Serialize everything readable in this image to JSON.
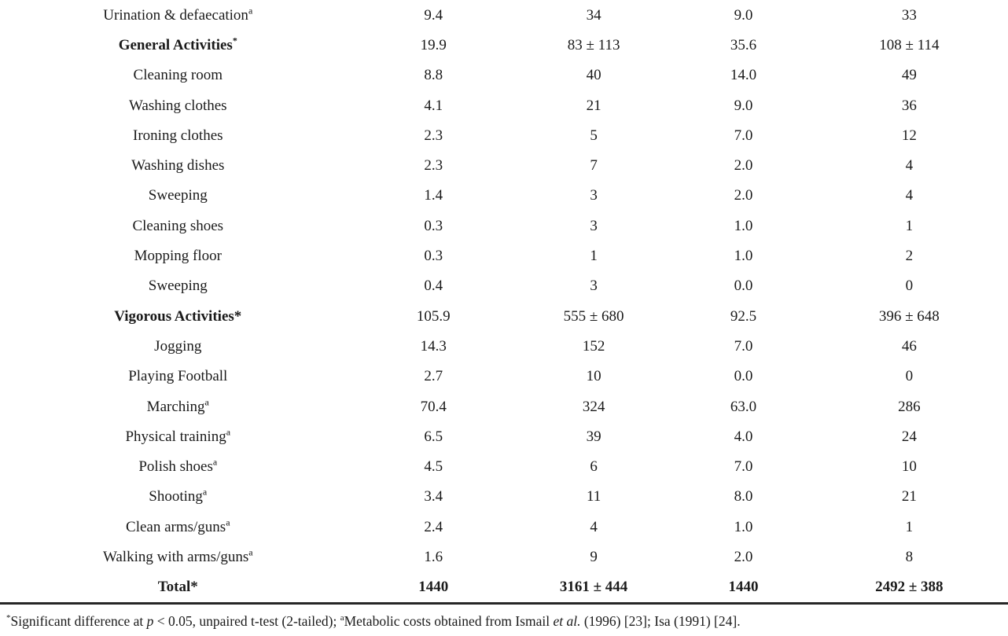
{
  "table": {
    "rows": [
      {
        "type": "item",
        "activity": "Urination & defaecation",
        "sup": "a",
        "values": [
          "9.4",
          "34",
          "9.0",
          "33"
        ]
      },
      {
        "type": "section",
        "activity": "General Activities",
        "sup": "*",
        "values": [
          "19.9",
          "83 ± 113",
          "35.6",
          "108 ± 114"
        ]
      },
      {
        "type": "item",
        "activity": "Cleaning room",
        "sup": "",
        "values": [
          "8.8",
          "40",
          "14.0",
          "49"
        ]
      },
      {
        "type": "item",
        "activity": "Washing clothes",
        "sup": "",
        "values": [
          "4.1",
          "21",
          "9.0",
          "36"
        ]
      },
      {
        "type": "item",
        "activity": "Ironing clothes",
        "sup": "",
        "values": [
          "2.3",
          "5",
          "7.0",
          "12"
        ]
      },
      {
        "type": "item",
        "activity": "Washing dishes",
        "sup": "",
        "values": [
          "2.3",
          "7",
          "2.0",
          "4"
        ]
      },
      {
        "type": "item",
        "activity": "Sweeping",
        "sup": "",
        "values": [
          "1.4",
          "3",
          "2.0",
          "4"
        ]
      },
      {
        "type": "item",
        "activity": "Cleaning shoes",
        "sup": "",
        "values": [
          "0.3",
          "3",
          "1.0",
          "1"
        ]
      },
      {
        "type": "item",
        "activity": "Mopping floor",
        "sup": "",
        "values": [
          "0.3",
          "1",
          "1.0",
          "2"
        ]
      },
      {
        "type": "item",
        "activity": "Sweeping",
        "sup": "",
        "values": [
          "0.4",
          "3",
          "0.0",
          "0"
        ]
      },
      {
        "type": "section",
        "activity": "Vigorous Activities*",
        "sup": "",
        "values": [
          "105.9",
          "555 ± 680",
          "92.5",
          "396 ± 648"
        ]
      },
      {
        "type": "item",
        "activity": "Jogging",
        "sup": "",
        "values": [
          "14.3",
          "152",
          "7.0",
          "46"
        ]
      },
      {
        "type": "item",
        "activity": "Playing Football",
        "sup": "",
        "values": [
          "2.7",
          "10",
          "0.0",
          "0"
        ]
      },
      {
        "type": "item",
        "activity": "Marching",
        "sup": "a",
        "values": [
          "70.4",
          "324",
          "63.0",
          "286"
        ]
      },
      {
        "type": "item",
        "activity": "Physical training",
        "sup": "a",
        "values": [
          "6.5",
          "39",
          "4.0",
          "24"
        ]
      },
      {
        "type": "item",
        "activity": "Polish shoes",
        "sup": "a",
        "values": [
          "4.5",
          "6",
          "7.0",
          "10"
        ]
      },
      {
        "type": "item",
        "activity": "Shooting",
        "sup": "a",
        "values": [
          "3.4",
          "11",
          "8.0",
          "21"
        ]
      },
      {
        "type": "item",
        "activity": "Clean arms/guns",
        "sup": "a",
        "values": [
          "2.4",
          "4",
          "1.0",
          "1"
        ]
      },
      {
        "type": "item",
        "activity": "Walking with arms/guns",
        "sup": "a",
        "values": [
          "1.6",
          "9",
          "2.0",
          "8"
        ]
      },
      {
        "type": "total",
        "activity": "Total*",
        "sup": "",
        "values": [
          "1440",
          "3161 ± 444",
          "1440",
          "2492 ± 388"
        ]
      }
    ]
  },
  "footnote": {
    "sup1": "*",
    "part1": "Significant difference at ",
    "p_italic": "p",
    "part2": " < 0.05, unpaired t-test (2-tailed); ",
    "sup2": "a",
    "part3": "Metabolic costs obtained from Ismail ",
    "etal": "et al.",
    "part4": " (1996) [23]; Isa (1991) [24]."
  }
}
